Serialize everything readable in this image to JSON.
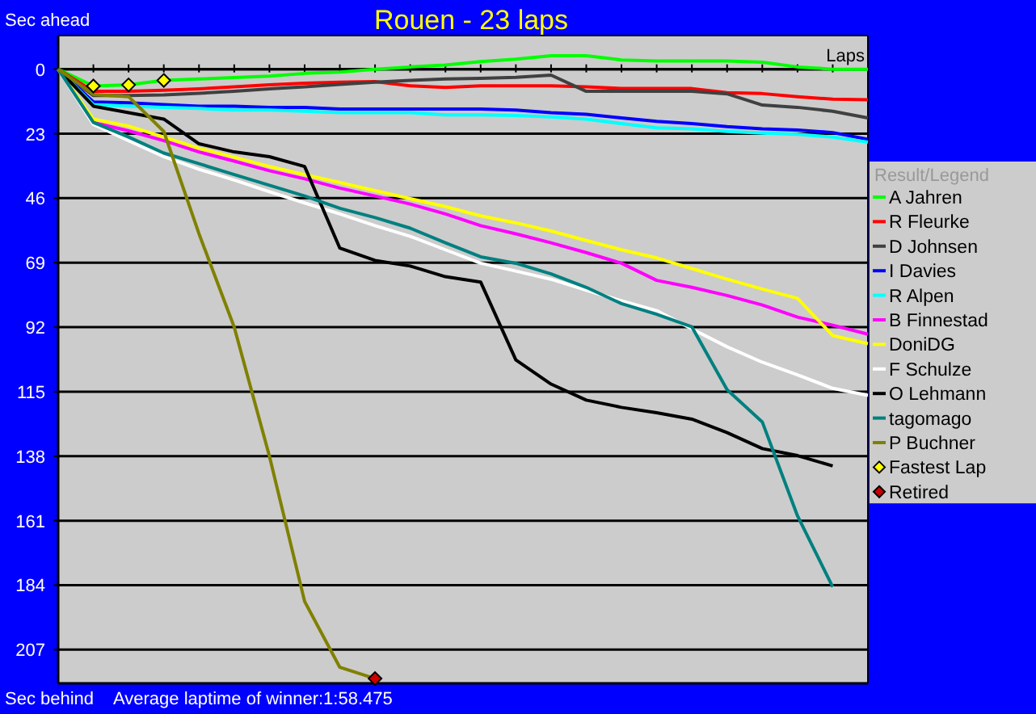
{
  "chart_data": {
    "type": "line",
    "title": "Rouen - 23 laps",
    "ylabel": "Sec ahead",
    "xlabel": "Laps",
    "legend_title": "Result/Legend",
    "annotations": [
      "Sec behind",
      "Average laptime of winner:1:58.475"
    ],
    "categories": [
      null,
      null,
      null,
      null,
      null,
      null,
      null,
      null,
      null,
      null,
      null,
      null,
      null,
      null,
      null,
      null,
      null,
      null,
      null,
      null,
      null,
      null,
      null,
      null
    ],
    "ylim": [
      219,
      -12
    ],
    "yticks": [
      0,
      23,
      46,
      69,
      92,
      115,
      138,
      161,
      184,
      207
    ],
    "grid": "y",
    "legend": "right",
    "tick_labels": "y",
    "marker": "none",
    "series": [
      {
        "name": "A Jahren",
        "color": "#00ff00",
        "values": [
          0,
          6,
          5.6,
          4,
          3.5,
          3,
          2.5,
          1.5,
          1,
          0,
          -0.8,
          -1.5,
          -2.7,
          -3.6,
          -4.8,
          -4.8,
          -3.3,
          -2.9,
          -2.9,
          -2.9,
          -2.5,
          -0.8,
          0,
          0
        ]
      },
      {
        "name": "R Fleurke",
        "color": "#ff0000",
        "values": [
          0,
          7.9,
          7.9,
          7.5,
          7,
          6.3,
          5.6,
          5,
          4.6,
          4.4,
          5.9,
          6.5,
          5.9,
          5.9,
          5.9,
          6.3,
          6.9,
          6.9,
          6.9,
          8.4,
          8.7,
          9.8,
          10.7,
          10.9
        ]
      },
      {
        "name": "D Johnsen",
        "color": "#404040",
        "values": [
          0,
          9.4,
          9.4,
          9.2,
          8.6,
          7.9,
          7,
          6.3,
          5.4,
          4.6,
          4,
          3.5,
          3.3,
          2.9,
          2.1,
          7.9,
          7.9,
          7.9,
          7.9,
          8.8,
          12.8,
          13.6,
          15,
          17.4
        ]
      },
      {
        "name": "I Davies",
        "color": "#0000ff",
        "values": [
          0,
          11.7,
          12,
          12.6,
          13.2,
          13.2,
          13.6,
          13.6,
          14.2,
          14.2,
          14.2,
          14.2,
          14.2,
          14.6,
          15.5,
          16.1,
          17.4,
          18.6,
          19.4,
          20.5,
          21.3,
          21.7,
          22.6,
          25
        ]
      },
      {
        "name": "R Alpen",
        "color": "#00ffff",
        "values": [
          0,
          12.6,
          13.2,
          13.6,
          14,
          14.6,
          14.6,
          15,
          15.5,
          15.5,
          15.5,
          16.3,
          16.3,
          16.5,
          17,
          17.8,
          19.4,
          20.9,
          21.3,
          22.2,
          22.8,
          23.2,
          24.2,
          26
        ]
      },
      {
        "name": "B Finnestad",
        "color": "#ff00ff",
        "values": [
          0,
          19,
          22,
          25.5,
          29.5,
          32.8,
          36.2,
          39.1,
          42.4,
          45.2,
          48.1,
          51.6,
          55.8,
          58.7,
          61.9,
          65.4,
          69.2,
          75.3,
          77.8,
          80.7,
          84.1,
          88.4,
          91.3,
          94.5
        ]
      },
      {
        "name": "DoniDG",
        "color": "#ffff00",
        "values": [
          0,
          17.8,
          20.3,
          24.2,
          28.2,
          31.4,
          34.7,
          37.6,
          40.4,
          43.3,
          46.2,
          49,
          52.3,
          54.8,
          57.7,
          61.1,
          64.4,
          67.3,
          71.1,
          74.9,
          78.4,
          81.7,
          95,
          97.9
        ]
      },
      {
        "name": "F Schulze",
        "color": "#ffffff",
        "values": [
          0,
          19.7,
          25.5,
          31.2,
          35.7,
          39.5,
          43.7,
          47.7,
          51.6,
          55.8,
          59.6,
          64.4,
          69.2,
          72,
          74.9,
          78.8,
          82.6,
          86.1,
          92.6,
          99,
          104.5,
          109,
          113.8,
          116.3
        ]
      },
      {
        "name": "O Lehmann",
        "color": "#000000",
        "values": [
          0,
          13.2,
          15.5,
          17.8,
          26.6,
          29.5,
          31.2,
          34.7,
          63.8,
          68.2,
          70.2,
          74,
          75.9,
          103.7,
          112.3,
          118,
          120.6,
          122.5,
          124.8,
          129.6,
          135.3,
          137.8,
          141.5,
          null
        ]
      },
      {
        "name": "tagomago",
        "color": "#008080",
        "values": [
          0,
          19,
          24.2,
          29.9,
          33.7,
          37.6,
          41.4,
          45.2,
          49.6,
          52.9,
          56.7,
          61.9,
          66.9,
          69.2,
          73,
          77.8,
          83.6,
          87.4,
          91.9,
          114.3,
          125.8,
          159.3,
          184.6,
          null
        ]
      },
      {
        "name": "P Buchner",
        "color": "#808000",
        "values": [
          0,
          9,
          9.8,
          22.2,
          58.7,
          92,
          138,
          189.8,
          213.3,
          217.3,
          null,
          null,
          null,
          null,
          null,
          null,
          null,
          null,
          null,
          null,
          null,
          null,
          null,
          null
        ]
      },
      {
        "name": "Fastest Lap",
        "type": "scatter",
        "marker": "diamond",
        "color": "#ffff00",
        "values": [
          null,
          6,
          5.6,
          4,
          null,
          null,
          null,
          null,
          null,
          null,
          null,
          null,
          null,
          null,
          null,
          null,
          null,
          null,
          null,
          null,
          null,
          null,
          null,
          null
        ]
      },
      {
        "name": "Retired",
        "type": "scatter",
        "marker": "diamond",
        "color": "#cc0000",
        "values": [
          null,
          null,
          null,
          null,
          null,
          null,
          null,
          null,
          null,
          217.3,
          null,
          null,
          null,
          null,
          null,
          null,
          null,
          null,
          null,
          null,
          null,
          null,
          null,
          null
        ]
      }
    ]
  }
}
